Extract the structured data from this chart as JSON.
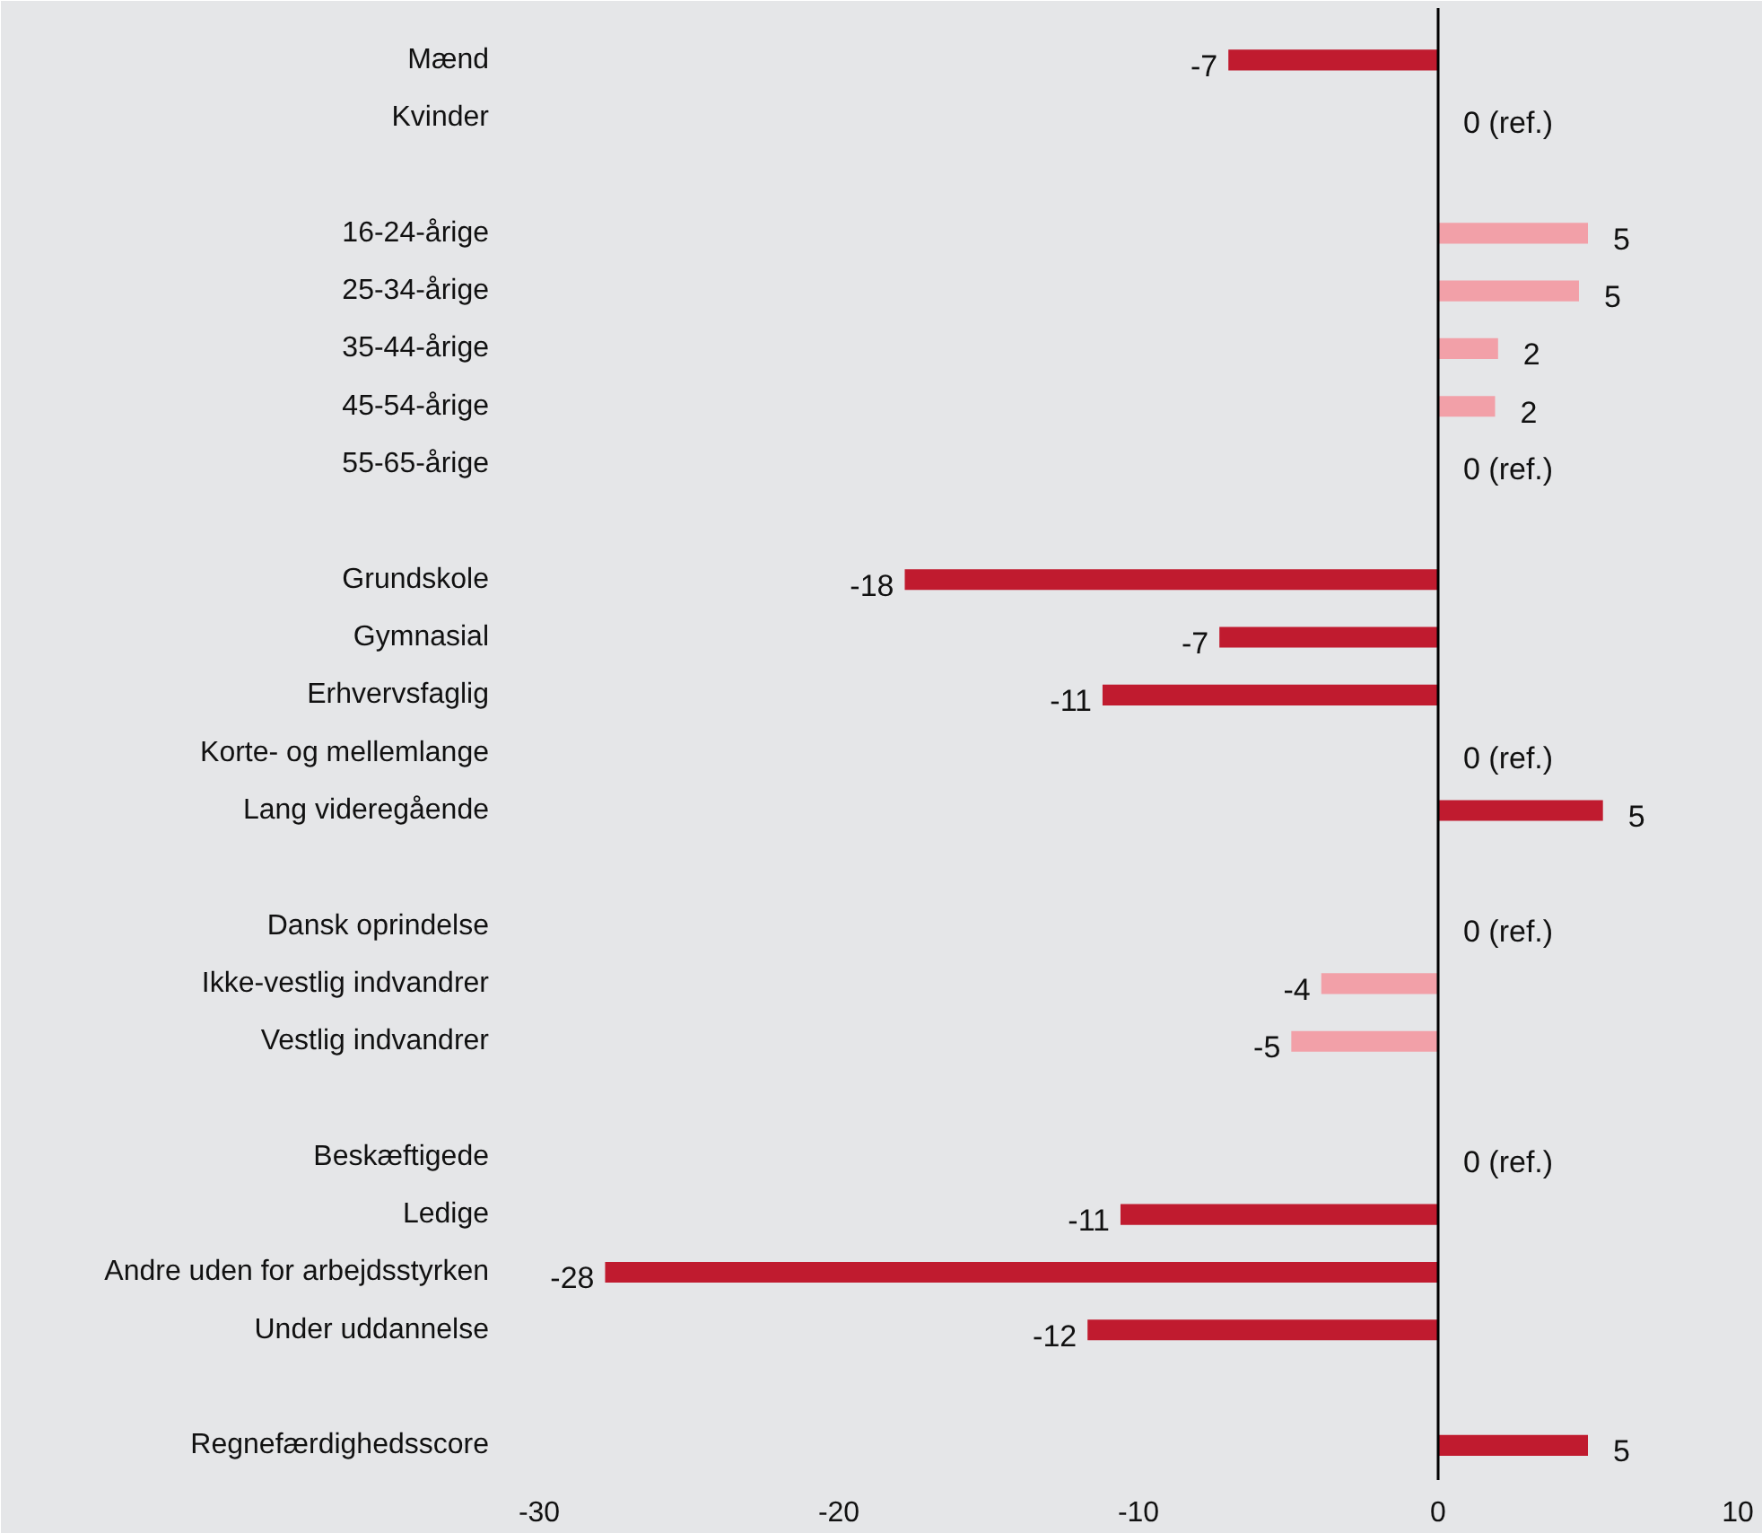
{
  "chart_data": {
    "type": "bar",
    "orientation": "horizontal",
    "categories": [
      "Mænd",
      "Kvinder",
      null,
      "16-24-årige",
      "25-34-årige",
      "35-44-årige",
      "45-54-årige",
      "55-65-årige",
      null,
      "Grundskole",
      "Gymnasial",
      "Erhvervsfaglig",
      "Korte- og mellemlange",
      "Lang videregående",
      null,
      "Dansk oprindelse",
      "Ikke-vestlig indvandrer",
      "Vestlig indvandrer",
      null,
      "Beskæftigede",
      "Ledige",
      "Andre uden for arbejdsstyrken",
      "Under uddannelse",
      null,
      "Regnefærdighedsscore"
    ],
    "values": [
      -7.0,
      0,
      null,
      5.0,
      4.7,
      2.0,
      1.9,
      0,
      null,
      -17.8,
      -7.3,
      -11.2,
      0,
      5.5,
      null,
      0,
      -3.9,
      -4.9,
      null,
      0,
      -10.6,
      -27.8,
      -11.7,
      null,
      5.0
    ],
    "value_labels": [
      "-7",
      "0 (ref.)",
      null,
      "5",
      "5",
      "2",
      "2",
      "0 (ref.)",
      null,
      "-18",
      "-7",
      "-11",
      "0 (ref.)",
      "5",
      null,
      "0 (ref.)",
      "-4",
      "-5",
      null,
      "0 (ref.)",
      "-11",
      "-28",
      "-12",
      null,
      "5"
    ],
    "colors": [
      "#c01b2f",
      "#c01b2f",
      null,
      "#f2a0a8",
      "#f2a0a8",
      "#f2a0a8",
      "#f2a0a8",
      "#f2a0a8",
      null,
      "#c01b2f",
      "#c01b2f",
      "#c01b2f",
      "#c01b2f",
      "#c01b2f",
      null,
      "#f2a0a8",
      "#f2a0a8",
      "#f2a0a8",
      null,
      "#c01b2f",
      "#c01b2f",
      "#c01b2f",
      "#c01b2f",
      null,
      "#c01b2f"
    ],
    "xlim": [
      -30,
      10
    ],
    "xticks": [
      -30,
      -20,
      -10,
      0,
      10
    ],
    "ref_lines": [
      {
        "axis": "x",
        "value": 0,
        "color": "#000000"
      }
    ]
  }
}
